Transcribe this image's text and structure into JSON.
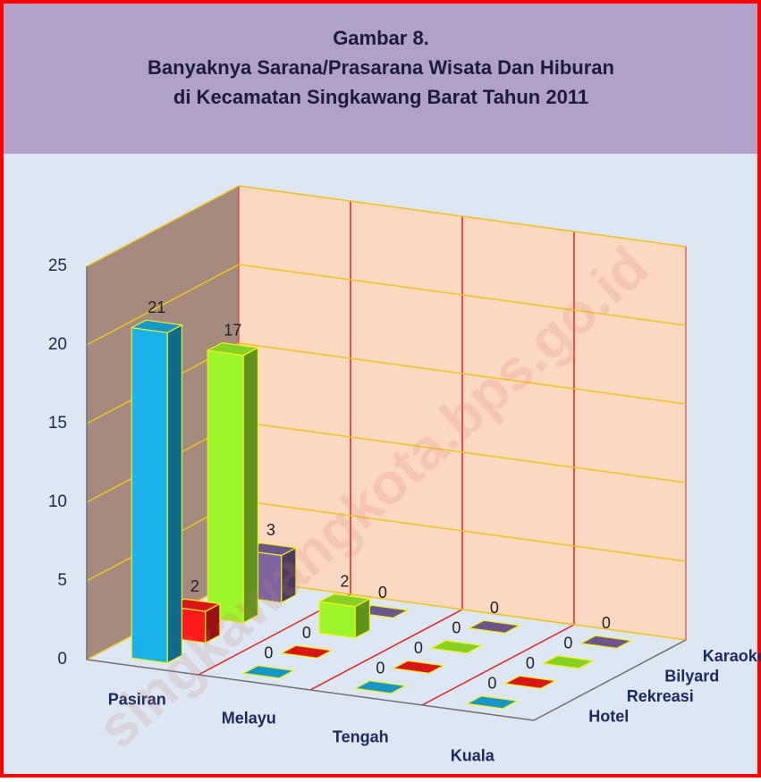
{
  "chart_data": {
    "type": "bar3d",
    "title_lines": [
      "Gambar 8.",
      "Banyaknya Sarana/Prasarana Wisata Dan Hiburan",
      "di Kecamatan Singkawang Barat Tahun 2011"
    ],
    "categories": [
      "Pasiran",
      "Melayu",
      "Tengah",
      "Kuala"
    ],
    "series": [
      {
        "name": "Hotel",
        "color": "#1ab2ea",
        "values": [
          21,
          0,
          0,
          0
        ]
      },
      {
        "name": "Rekreasi",
        "color": "#ff1a1a",
        "values": [
          2,
          0,
          0,
          0
        ]
      },
      {
        "name": "Bilyard",
        "color": "#9cf62a",
        "values": [
          17,
          2,
          0,
          0
        ]
      },
      {
        "name": "Karaoke",
        "color": "#7e64a2",
        "values": [
          3,
          0,
          0,
          0
        ]
      }
    ],
    "ylim": [
      0,
      25
    ],
    "yticks": [
      0,
      5,
      10,
      15,
      20,
      25
    ],
    "grid": true,
    "watermark": "singkawangkota.bps.go.id"
  }
}
